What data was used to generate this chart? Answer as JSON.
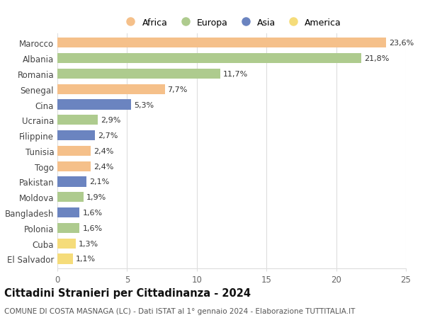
{
  "countries": [
    "Marocco",
    "Albania",
    "Romania",
    "Senegal",
    "Cina",
    "Ucraina",
    "Filippine",
    "Tunisia",
    "Togo",
    "Pakistan",
    "Moldova",
    "Bangladesh",
    "Polonia",
    "Cuba",
    "El Salvador"
  ],
  "values": [
    23.6,
    21.8,
    11.7,
    7.7,
    5.3,
    2.9,
    2.7,
    2.4,
    2.4,
    2.1,
    1.9,
    1.6,
    1.6,
    1.3,
    1.1
  ],
  "labels": [
    "23,6%",
    "21,8%",
    "11,7%",
    "7,7%",
    "5,3%",
    "2,9%",
    "2,7%",
    "2,4%",
    "2,4%",
    "2,1%",
    "1,9%",
    "1,6%",
    "1,6%",
    "1,3%",
    "1,1%"
  ],
  "continents": [
    "Africa",
    "Europa",
    "Europa",
    "Africa",
    "Asia",
    "Europa",
    "Asia",
    "Africa",
    "Africa",
    "Asia",
    "Europa",
    "Asia",
    "Europa",
    "America",
    "America"
  ],
  "continent_colors": {
    "Africa": "#F5C08A",
    "Europa": "#AECB8E",
    "Asia": "#6B84C0",
    "America": "#F5DC7A"
  },
  "legend_order": [
    "Africa",
    "Europa",
    "Asia",
    "America"
  ],
  "title": "Cittadini Stranieri per Cittadinanza - 2024",
  "subtitle": "COMUNE DI COSTA MASNAGA (LC) - Dati ISTAT al 1° gennaio 2024 - Elaborazione TUTTITALIA.IT",
  "xlim": [
    0,
    25
  ],
  "xticks": [
    0,
    5,
    10,
    15,
    20,
    25
  ],
  "bg_color": "#FFFFFF",
  "grid_color": "#DDDDDD",
  "bar_height": 0.65,
  "label_fontsize": 8.0,
  "tick_fontsize": 8.5,
  "title_fontsize": 10.5,
  "subtitle_fontsize": 7.5
}
